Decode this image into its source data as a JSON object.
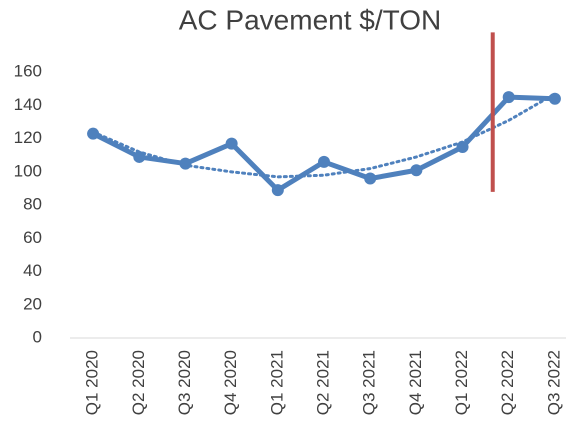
{
  "chart_data": {
    "type": "line",
    "title": "AC Pavement $/TON",
    "categories": [
      "Q1 2020",
      "Q2 2020",
      "Q3 2020",
      "Q4 2020",
      "Q1 2021",
      "Q2 2021",
      "Q3 2021",
      "Q4 2021",
      "Q1 2022",
      "Q2 2022",
      "Q3 2022"
    ],
    "series": [
      {
        "color": "#4f81bd",
        "style": "solid",
        "markers": true,
        "values": [
          123,
          109,
          105,
          117,
          89,
          106,
          96,
          101,
          115,
          145,
          144
        ]
      },
      {
        "color": "#4f81bd",
        "style": "dotted",
        "markers": false,
        "values": [
          124,
          112,
          104,
          100,
          97,
          98,
          102,
          109,
          118,
          131,
          147
        ]
      }
    ],
    "vline": {
      "category": "Q2 2022",
      "color": "#c0504d",
      "ylim": [
        88,
        184
      ]
    },
    "ylim": [
      0,
      180
    ],
    "yticks": [
      0,
      20,
      40,
      60,
      80,
      100,
      120,
      140,
      160
    ],
    "grid": false
  }
}
